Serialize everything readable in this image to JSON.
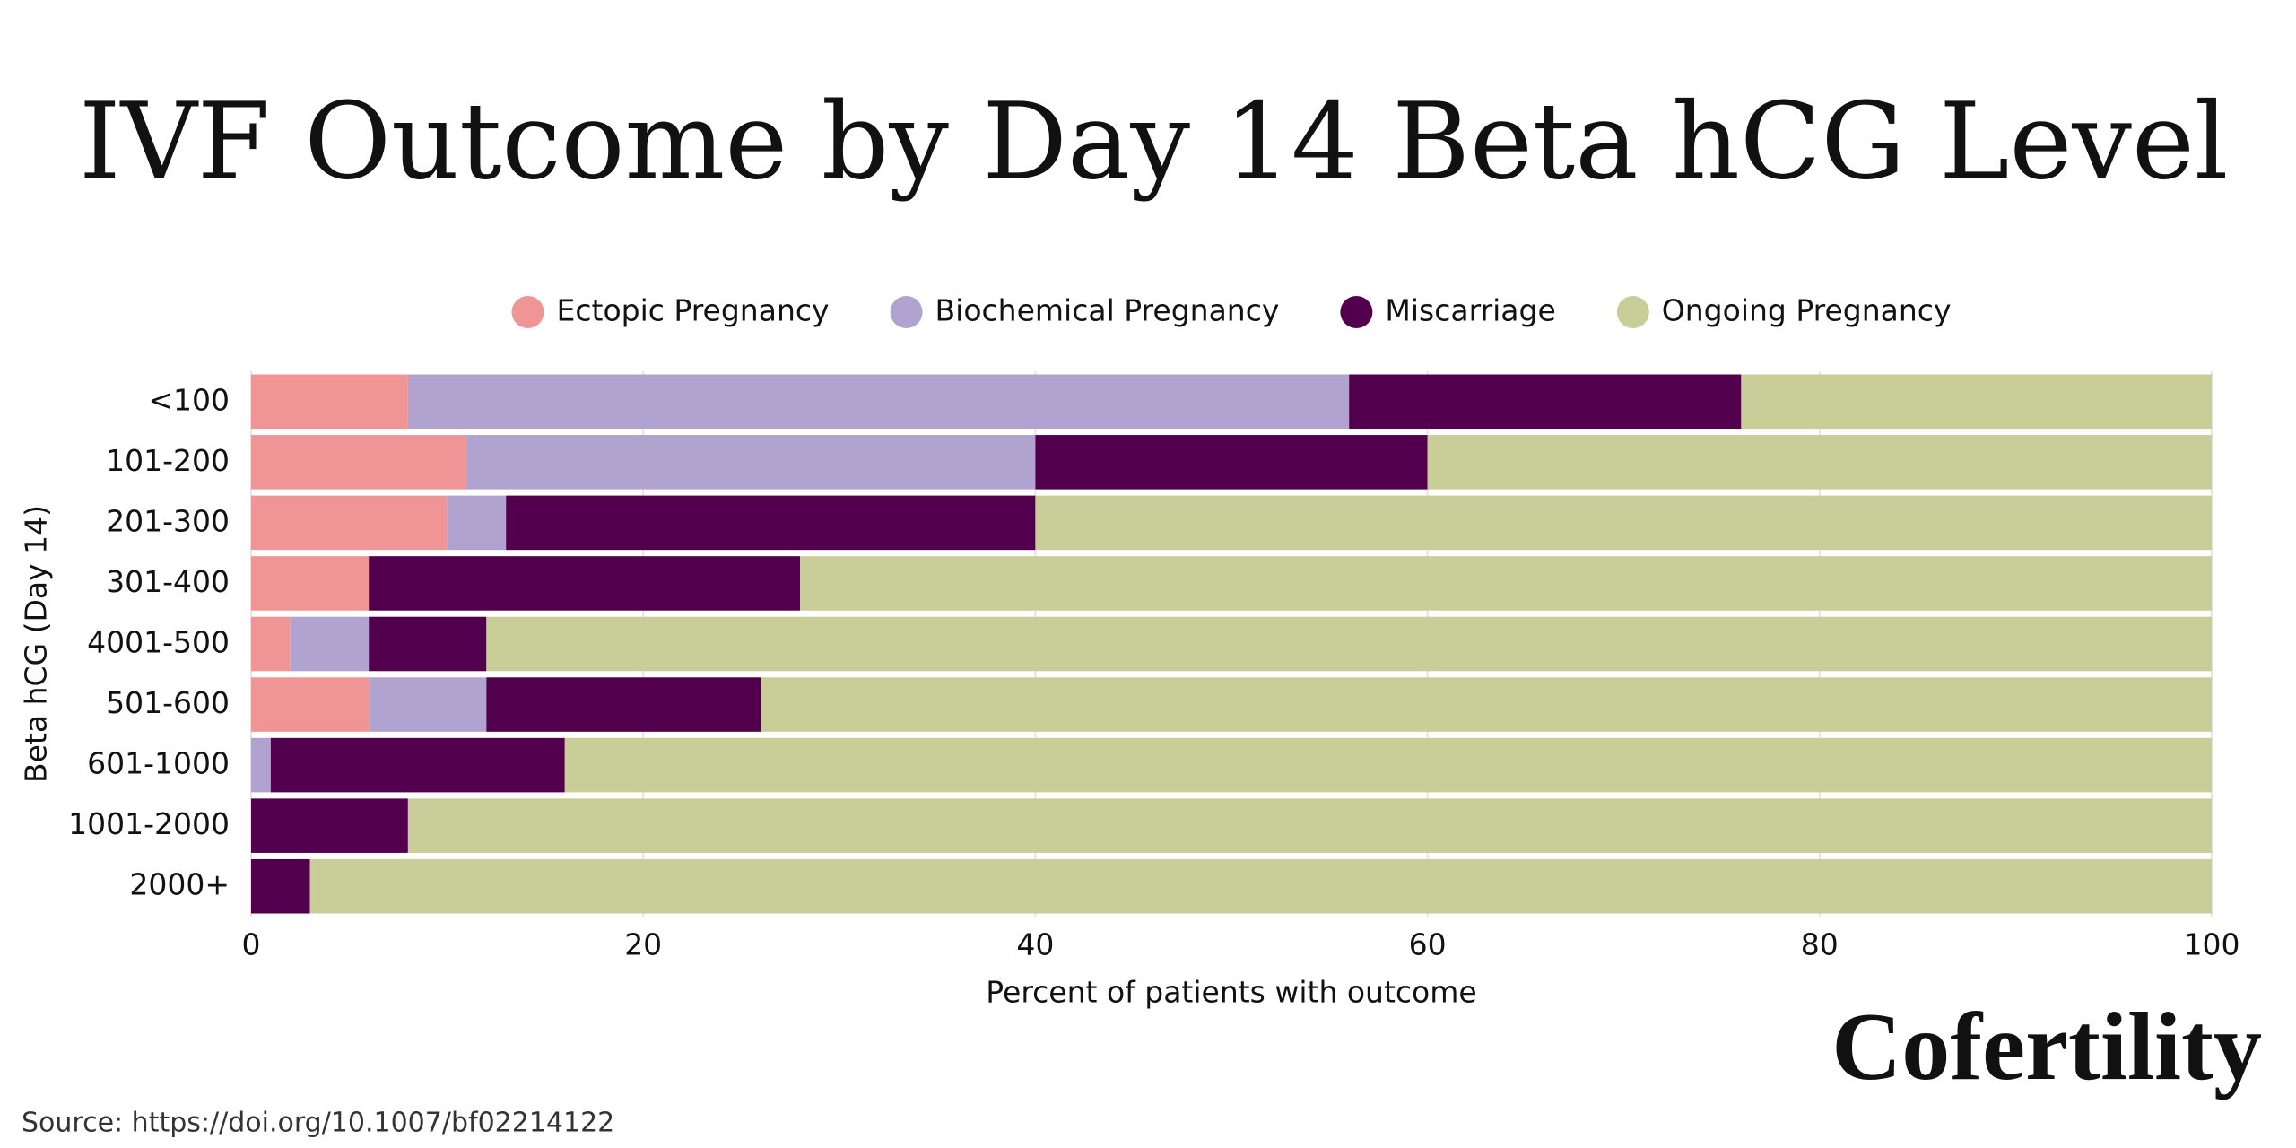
{
  "chart_data": {
    "type": "stacked_barh",
    "title": "IVF Outcome by Day 14 Beta hCG Level",
    "xlabel": "Percent of patients with outcome",
    "ylabel": "Beta hCG (Day 14)",
    "categories": [
      "<100",
      "101-200",
      "201-300",
      "301-400",
      "4001-500",
      "501-600",
      "601-1000",
      "1001-2000",
      "2000+"
    ],
    "series": [
      {
        "name": "Ectopic Pregnancy",
        "color": "#f09595",
        "values": [
          8,
          11,
          10,
          6,
          2,
          6,
          0,
          0,
          0
        ]
      },
      {
        "name": "Biochemical Pregnancy",
        "color": "#b0a3cf",
        "values": [
          48,
          29,
          3,
          0,
          4,
          6,
          1,
          0,
          0
        ]
      },
      {
        "name": "Miscarriage",
        "color": "#52004e",
        "values": [
          20,
          20,
          27,
          22,
          6,
          14,
          15,
          8,
          3
        ]
      },
      {
        "name": "Ongoing Pregnancy",
        "color": "#c9cd98",
        "values": [
          24,
          40,
          60,
          72,
          88,
          74,
          84,
          92,
          97
        ]
      }
    ],
    "xlim": [
      0,
      100
    ],
    "xticks": [
      0,
      20,
      40,
      60,
      80,
      100
    ],
    "grid": true,
    "legend": "top",
    "brand": "Cofertility",
    "source": "Source: https://doi.org/10.1007/bf02214122"
  }
}
